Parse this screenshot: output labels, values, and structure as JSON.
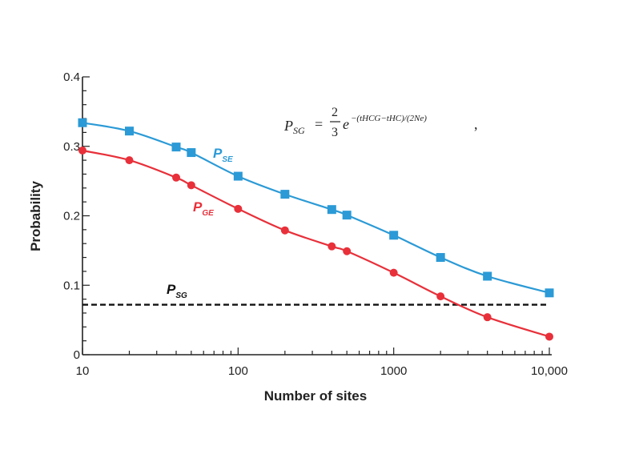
{
  "chart_data": {
    "type": "line",
    "xlabel": "Number of sites",
    "ylabel": "Probability",
    "xscale": "log",
    "xlim": [
      10,
      10000
    ],
    "ylim": [
      0,
      0.4
    ],
    "xticks": [
      {
        "value": 10,
        "label": "10"
      },
      {
        "value": 100,
        "label": "100"
      },
      {
        "value": 1000,
        "label": "1000"
      },
      {
        "value": 10000,
        "label": "10,000"
      }
    ],
    "yticks": [
      {
        "value": 0,
        "label": "0"
      },
      {
        "value": 0.1,
        "label": "0.1"
      },
      {
        "value": 0.2,
        "label": "0.2"
      },
      {
        "value": 0.3,
        "label": "0.3"
      },
      {
        "value": 0.4,
        "label": "0.4"
      }
    ],
    "grid": false,
    "series": [
      {
        "name": "P",
        "subscript": "SE",
        "color": "#2b9ad6",
        "marker": "square",
        "x": [
          10,
          20,
          40,
          50,
          100,
          200,
          400,
          500,
          1000,
          2000,
          4000,
          10000
        ],
        "y": [
          0.334,
          0.322,
          0.299,
          0.291,
          0.257,
          0.231,
          0.209,
          0.201,
          0.172,
          0.14,
          0.113,
          0.089
        ]
      },
      {
        "name": "P",
        "subscript": "GE",
        "color": "#e8303a",
        "marker": "circle",
        "x": [
          10,
          20,
          40,
          50,
          100,
          200,
          400,
          500,
          1000,
          2000,
          4000,
          10000
        ],
        "y": [
          0.294,
          0.28,
          0.255,
          0.244,
          0.21,
          0.179,
          0.156,
          0.149,
          0.118,
          0.084,
          0.054,
          0.026
        ]
      }
    ],
    "reference_line": {
      "name": "P",
      "subscript": "SG",
      "y": 0.072,
      "color": "#111111",
      "style": "dashed"
    },
    "annotation": {
      "lhs_main": "P",
      "lhs_sub": "SG",
      "equals": "=",
      "frac_num": "2",
      "frac_den": "3",
      "base": "e",
      "exponent": "−(tHCG−tHC)/(2Ne)",
      "trailing": ","
    }
  }
}
